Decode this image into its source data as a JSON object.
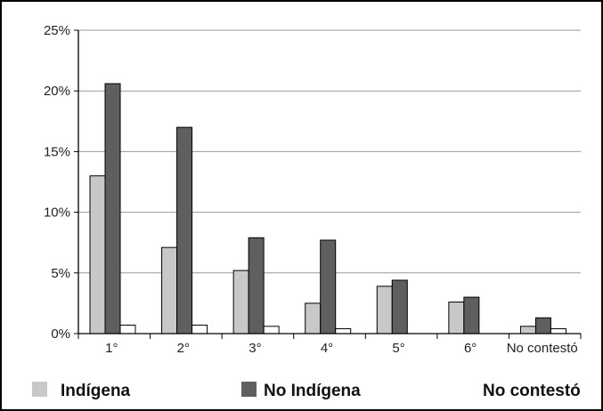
{
  "chart_data": {
    "type": "bar",
    "categories": [
      "1°",
      "2°",
      "3°",
      "4°",
      "5°",
      "6°",
      "No contestó"
    ],
    "series": [
      {
        "name": "Indígena",
        "values": [
          13.0,
          7.1,
          5.2,
          2.5,
          3.9,
          2.6,
          0.6
        ]
      },
      {
        "name": "No Indígena",
        "values": [
          20.6,
          17.0,
          7.9,
          7.7,
          4.4,
          3.0,
          1.3
        ]
      },
      {
        "name": "No contestó",
        "values": [
          0.7,
          0.7,
          0.6,
          0.4,
          null,
          null,
          0.4
        ]
      }
    ],
    "ylim": [
      0,
      25
    ],
    "yticks": [
      0,
      5,
      10,
      15,
      20,
      25
    ],
    "ytick_labels": [
      "0%",
      "5%",
      "10%",
      "15%",
      "20%",
      "25%"
    ],
    "grid": "horizontal",
    "legend": "bottom",
    "colors": {
      "Indígena": "#c8c8c8",
      "No Indígena": "#5f5f5f",
      "No contestó": "#ffffff"
    }
  }
}
